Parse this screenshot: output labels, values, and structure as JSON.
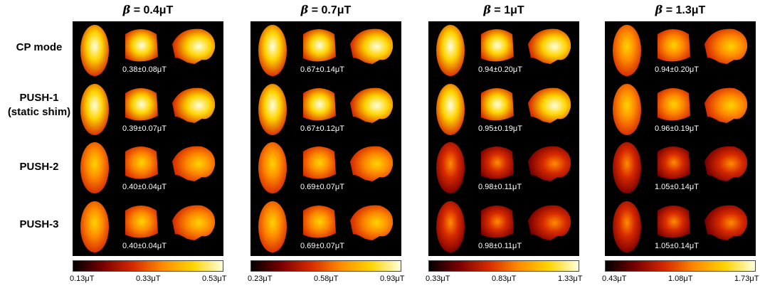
{
  "rows": [
    "CP mode",
    "PUSH-1\n(static shim)",
    "PUSH-2",
    "PUSH-3"
  ],
  "panels": [
    {
      "beta_symbol": "β",
      "title_rest": " = 0.4μT",
      "stats": [
        "0.38±0.08μT",
        "0.39±0.07μT",
        "0.40±0.04μT",
        "0.40±0.04μT"
      ],
      "ticks": [
        "0.13μT",
        "0.33μT",
        "0.53μT"
      ],
      "intensity": [
        1.0,
        0.85,
        0.55,
        0.55
      ]
    },
    {
      "beta_symbol": "β",
      "title_rest": " = 0.7μT",
      "stats": [
        "0.67±0.14μT",
        "0.67±0.12μT",
        "0.69±0.07μT",
        "0.69±0.07μT"
      ],
      "ticks": [
        "0.23μT",
        "0.58μT",
        "0.93μT"
      ],
      "intensity": [
        1.0,
        1.0,
        0.55,
        0.55
      ]
    },
    {
      "beta_symbol": "β",
      "title_rest": " = 1μT",
      "stats": [
        "0.94±0.20μT",
        "0.95±0.19μT",
        "0.98±0.11μT",
        "0.98±0.11μT"
      ],
      "ticks": [
        "0.33μT",
        "0.83μT",
        "1.33μT"
      ],
      "intensity": [
        1.0,
        1.0,
        0.5,
        0.5
      ]
    },
    {
      "beta_symbol": "β",
      "title_rest": " = 1.3μT",
      "stats": [
        "0.94±0.20μT",
        "0.96±0.19μT",
        "1.05±0.14μT",
        "1.05±0.14μT"
      ],
      "ticks": [
        "0.43μT",
        "1.08μT",
        "1.73μT"
      ],
      "intensity": [
        0.6,
        0.6,
        0.35,
        0.35
      ]
    }
  ],
  "colormap": [
    "#000000",
    "#7a0000",
    "#d62a00",
    "#ff8c00",
    "#ffd400",
    "#ffffe0"
  ]
}
